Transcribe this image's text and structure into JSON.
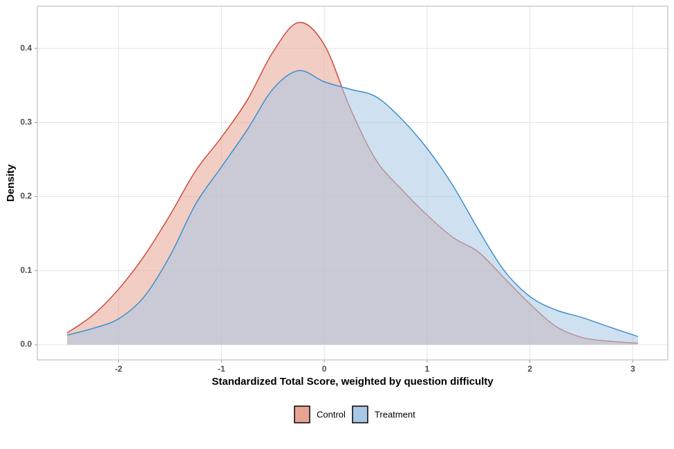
{
  "chart_data": {
    "type": "area",
    "x_label": "Standardized Total Score, weighted by question difficulty",
    "y_label": "Density",
    "x": [
      -2.5,
      -2.25,
      -2,
      -1.75,
      -1.5,
      -1.25,
      -1,
      -0.75,
      -0.5,
      -0.25,
      0,
      0.25,
      0.5,
      0.75,
      1,
      1.25,
      1.5,
      1.75,
      2,
      2.25,
      2.5,
      2.75,
      3.05
    ],
    "series": [
      {
        "name": "Control",
        "color": "#cc4c3b",
        "fill": "#e8a493",
        "values": [
          0.016,
          0.04,
          0.075,
          0.12,
          0.175,
          0.235,
          0.28,
          0.33,
          0.395,
          0.435,
          0.405,
          0.32,
          0.25,
          0.21,
          0.175,
          0.145,
          0.125,
          0.09,
          0.055,
          0.025,
          0.01,
          0.005,
          0.002
        ]
      },
      {
        "name": "Treatment",
        "color": "#3d8fcc",
        "fill": "#a8c8e6",
        "values": [
          0.013,
          0.022,
          0.035,
          0.065,
          0.12,
          0.19,
          0.24,
          0.29,
          0.345,
          0.37,
          0.355,
          0.345,
          0.335,
          0.305,
          0.265,
          0.215,
          0.155,
          0.1,
          0.065,
          0.047,
          0.037,
          0.025,
          0.011
        ]
      }
    ],
    "xlim": [
      -2.79,
      3.34
    ],
    "ylim": [
      -0.0205,
      0.457
    ],
    "xticks": [
      -2,
      -1,
      0,
      1,
      2,
      3
    ],
    "yticks": [
      {
        "value": 0,
        "label": "0.0"
      },
      0.1,
      0.2,
      0.3,
      0.4
    ],
    "grid": true,
    "legend_position": "bottom"
  }
}
